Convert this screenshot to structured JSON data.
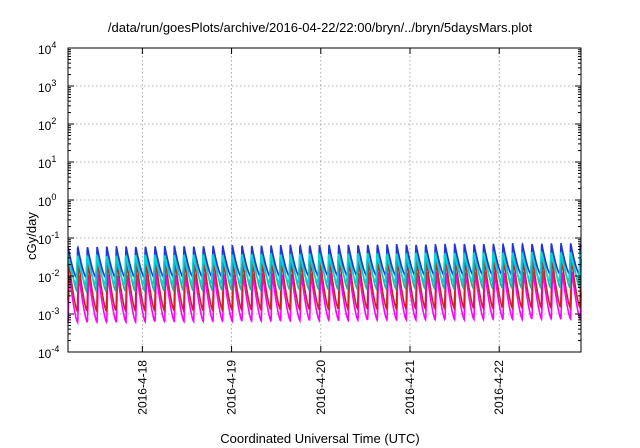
{
  "chart_data": {
    "type": "line",
    "title": "/data/run/goesPlots/archive/2016-04-22/22:00/bryn/../bryn/5daysMars.plot",
    "xlabel": "Coordinated Universal Time (UTC)",
    "ylabel": "cGy/day",
    "y_scale": "log",
    "ylim": [
      0.0001,
      10000
    ],
    "y_ticks": [
      {
        "base": "10",
        "exp": "4"
      },
      {
        "base": "10",
        "exp": "3"
      },
      {
        "base": "10",
        "exp": "2"
      },
      {
        "base": "10",
        "exp": "1"
      },
      {
        "base": "10",
        "exp": "0"
      },
      {
        "base": "10",
        "exp": "-1"
      },
      {
        "base": "10",
        "exp": "-2"
      },
      {
        "base": "10",
        "exp": "-3"
      },
      {
        "base": "10",
        "exp": "-4"
      }
    ],
    "x_range": [
      "2016-04-17 04:00",
      "2016-04-22 22:00"
    ],
    "x_ticks": [
      "2016-4-18",
      "2016-4-19",
      "2016-4-20",
      "2016-4-21",
      "2016-4-22"
    ],
    "grid": true,
    "legend": "none",
    "cycle_hours": 2.6,
    "series": [
      {
        "color": "#ff00ff",
        "peak": 0.011,
        "trough": 0.0006
      },
      {
        "color": "#cc2222",
        "peak": 0.025,
        "trough": 0.0012
      },
      {
        "color": "#20b2aa",
        "peak": 0.055,
        "trough": 0.004
      },
      {
        "color": "#2233dd",
        "peak": 0.06,
        "trough": 0.009
      },
      {
        "color": "#00d8d8",
        "peak": 0.035,
        "trough": 0.006
      }
    ]
  }
}
